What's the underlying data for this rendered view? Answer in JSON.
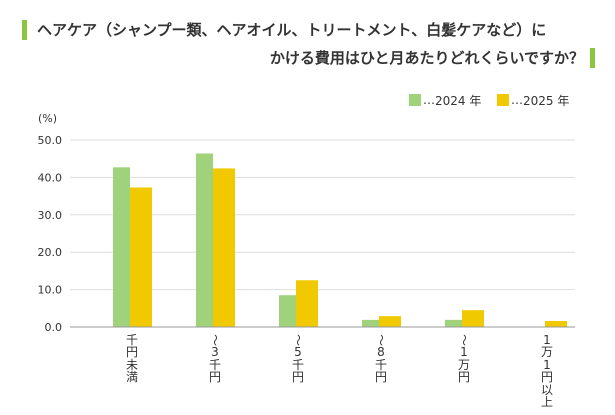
{
  "colors": {
    "accent": "#8cc63f",
    "text": "#333333",
    "grid": "#dedede",
    "axis": "#999999"
  },
  "chart_data": {
    "type": "bar",
    "title": [
      "ヘアケア（シャンプー類、ヘアオイル、トリートメント、白髪ケアなど）に",
      "かける費用はひと月あたりどれくらいですか？"
    ],
    "xlabel": "",
    "ylabel": "(%)",
    "ylim": [
      0,
      50
    ],
    "yticks": [
      "0.0",
      "10.0",
      "20.0",
      "30.0",
      "40.0",
      "50.0"
    ],
    "grid": true,
    "legend": {
      "position": "top-right",
      "leader": "…"
    },
    "categories": [
      "千円未満",
      "〜3千円",
      "〜5千円",
      "〜8千円",
      "〜1万円",
      "1万1円以上"
    ],
    "series": [
      {
        "name": "2024 年",
        "color": "#a0d27c",
        "values": [
          42.7,
          46.4,
          8.5,
          1.9,
          1.9,
          0.0
        ]
      },
      {
        "name": "2025 年",
        "color": "#f0c900",
        "values": [
          37.3,
          42.4,
          12.5,
          2.9,
          4.5,
          1.6
        ]
      }
    ]
  }
}
